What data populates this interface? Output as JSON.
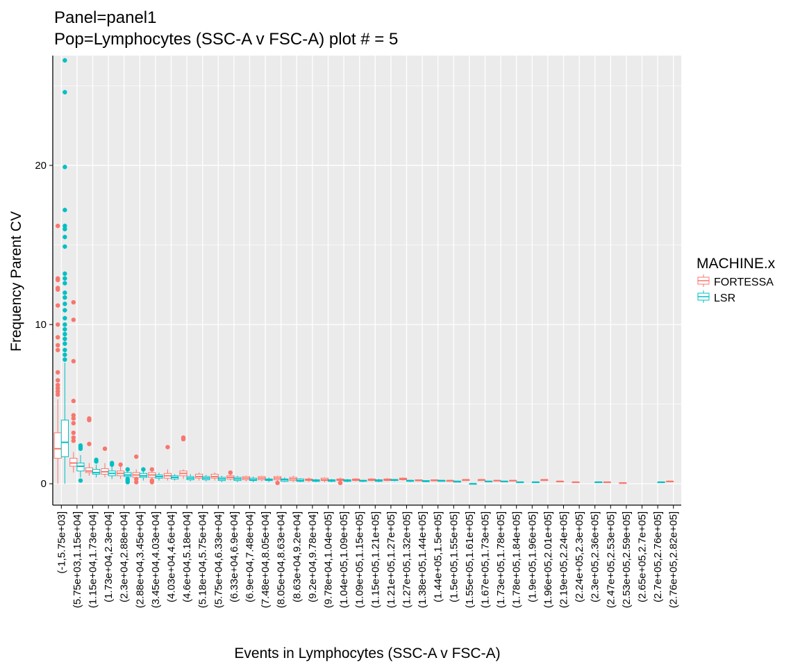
{
  "chart_data": {
    "type": "box",
    "title_lines": [
      "Panel=panel1",
      "Pop=Lymphocytes (SSC-A v FSC-A) plot # = 5"
    ],
    "xlabel": "Events in Lymphocytes (SSC-A v FSC-A)",
    "ylabel": "Frequency Parent CV",
    "ylim": [
      -1.3,
      26.9
    ],
    "yticks": [
      0,
      10,
      20
    ],
    "grid": true,
    "legend_position": "right",
    "legend": {
      "title": "MACHINE.x",
      "entries": [
        {
          "name": "FORTESSA",
          "color": "#f8766d"
        },
        {
          "name": "LSR",
          "color": "#00bfc4"
        }
      ]
    },
    "categories": [
      "(-1,5.75e+03]",
      "(5.75e+03,1.15e+04]",
      "(1.15e+04,1.73e+04]",
      "(1.73e+04,2.3e+04]",
      "(2.3e+04,2.88e+04]",
      "(2.88e+04,3.45e+04]",
      "(3.45e+04,4.03e+04]",
      "(4.03e+04,4.6e+04]",
      "(4.6e+04,5.18e+04]",
      "(5.18e+04,5.75e+04]",
      "(5.75e+04,6.33e+04]",
      "(6.33e+04,6.9e+04]",
      "(6.9e+04,7.48e+04]",
      "(7.48e+04,8.05e+04]",
      "(8.05e+04,8.63e+04]",
      "(8.63e+04,9.2e+04]",
      "(9.2e+04,9.78e+04]",
      "(9.78e+04,1.04e+05]",
      "(1.04e+05,1.09e+05]",
      "(1.09e+05,1.15e+05]",
      "(1.15e+05,1.21e+05]",
      "(1.21e+05,1.27e+05]",
      "(1.27e+05,1.32e+05]",
      "(1.38e+05,1.44e+05]",
      "(1.44e+05,1.5e+05]",
      "(1.5e+05,1.55e+05]",
      "(1.55e+05,1.61e+05]",
      "(1.67e+05,1.73e+05]",
      "(1.73e+05,1.78e+05]",
      "(1.78e+05,1.84e+05]",
      "(1.9e+05,1.96e+05]",
      "(1.96e+05,2.01e+05]",
      "(2.19e+05,2.24e+05]",
      "(2.24e+05,2.3e+05]",
      "(2.3e+05,2.36e+05]",
      "(2.47e+05,2.53e+05]",
      "(2.53e+05,2.59e+05]",
      "(2.65e+05,2.7e+05]",
      "(2.7e+05,2.76e+05]",
      "(2.76e+05,2.82e+05]"
    ],
    "series": [
      {
        "name": "FORTESSA",
        "color": "#f8766d",
        "boxes": [
          {
            "cat": 0,
            "q1": 1.6,
            "med": 2.2,
            "q3": 3.2,
            "lo": 0.0,
            "hi": 5.3,
            "outliers": [
              5.6,
              5.8,
              6.0,
              6.2,
              6.5,
              7.0,
              8.4,
              8.7,
              9.2,
              10.0,
              11.2,
              12.2,
              12.3,
              12.8,
              12.9,
              16.2
            ]
          },
          {
            "cat": 1,
            "q1": 1.1,
            "med": 1.3,
            "q3": 1.6,
            "lo": 0.7,
            "hi": 2.0,
            "outliers": [
              2.7,
              2.9,
              3.2,
              3.8,
              4.1,
              4.3,
              5.2,
              7.7,
              10.3,
              11.4
            ]
          },
          {
            "cat": 2,
            "q1": 0.7,
            "med": 0.8,
            "q3": 1.0,
            "lo": 0.5,
            "hi": 1.3,
            "outliers": [
              2.5,
              4.0,
              4.1
            ]
          },
          {
            "cat": 3,
            "q1": 0.6,
            "med": 0.75,
            "q3": 0.95,
            "lo": 0.4,
            "hi": 1.3,
            "outliers": [
              2.2
            ]
          },
          {
            "cat": 4,
            "q1": 0.5,
            "med": 0.65,
            "q3": 0.8,
            "lo": 0.3,
            "hi": 1.1,
            "outliers": [
              1.2
            ]
          },
          {
            "cat": 5,
            "q1": 0.4,
            "med": 0.55,
            "q3": 0.7,
            "lo": 0.2,
            "hi": 0.9,
            "outliers": [
              0.1,
              0.3,
              1.7
            ]
          },
          {
            "cat": 6,
            "q1": 0.4,
            "med": 0.55,
            "q3": 0.7,
            "lo": 0.2,
            "hi": 0.8,
            "outliers": [
              0.1,
              0.2,
              0.9
            ]
          },
          {
            "cat": 7,
            "q1": 0.35,
            "med": 0.5,
            "q3": 0.65,
            "lo": 0.2,
            "hi": 0.9,
            "outliers": [
              2.3
            ]
          },
          {
            "cat": 8,
            "q1": 0.5,
            "med": 0.65,
            "q3": 0.8,
            "lo": 0.3,
            "hi": 0.9,
            "outliers": [
              2.8,
              2.9
            ]
          },
          {
            "cat": 9,
            "q1": 0.35,
            "med": 0.45,
            "q3": 0.6,
            "lo": 0.2,
            "hi": 0.7,
            "outliers": []
          },
          {
            "cat": 10,
            "q1": 0.35,
            "med": 0.45,
            "q3": 0.6,
            "lo": 0.2,
            "hi": 0.7,
            "outliers": []
          },
          {
            "cat": 11,
            "q1": 0.3,
            "med": 0.4,
            "q3": 0.5,
            "lo": 0.2,
            "hi": 0.6,
            "outliers": [
              0.7
            ]
          },
          {
            "cat": 12,
            "q1": 0.25,
            "med": 0.35,
            "q3": 0.45,
            "lo": 0.15,
            "hi": 0.5,
            "outliers": []
          },
          {
            "cat": 13,
            "q1": 0.25,
            "med": 0.35,
            "q3": 0.45,
            "lo": 0.15,
            "hi": 0.5,
            "outliers": []
          },
          {
            "cat": 14,
            "q1": 0.25,
            "med": 0.35,
            "q3": 0.45,
            "lo": 0.15,
            "hi": 0.5,
            "outliers": [
              0.05
            ]
          },
          {
            "cat": 15,
            "q1": 0.2,
            "med": 0.3,
            "q3": 0.4,
            "lo": 0.1,
            "hi": 0.5,
            "outliers": []
          },
          {
            "cat": 16,
            "q1": 0.2,
            "med": 0.25,
            "q3": 0.3,
            "lo": 0.1,
            "hi": 0.4,
            "outliers": []
          },
          {
            "cat": 17,
            "q1": 0.2,
            "med": 0.25,
            "q3": 0.35,
            "lo": 0.1,
            "hi": 0.4,
            "outliers": []
          },
          {
            "cat": 18,
            "q1": 0.2,
            "med": 0.25,
            "q3": 0.3,
            "lo": 0.1,
            "hi": 0.4,
            "outliers": [
              0.05
            ]
          },
          {
            "cat": 19,
            "q1": 0.2,
            "med": 0.25,
            "q3": 0.3,
            "lo": 0.15,
            "hi": 0.35,
            "outliers": []
          },
          {
            "cat": 20,
            "q1": 0.2,
            "med": 0.25,
            "q3": 0.3,
            "lo": 0.15,
            "hi": 0.35,
            "outliers": []
          },
          {
            "cat": 21,
            "q1": 0.2,
            "med": 0.25,
            "q3": 0.3,
            "lo": 0.15,
            "hi": 0.35,
            "outliers": []
          },
          {
            "cat": 22,
            "q1": 0.25,
            "med": 0.3,
            "q3": 0.35,
            "lo": 0.2,
            "hi": 0.4,
            "outliers": []
          },
          {
            "cat": 23,
            "q1": 0.2,
            "med": 0.2,
            "q3": 0.25,
            "lo": 0.15,
            "hi": 0.25,
            "outliers": []
          },
          {
            "cat": 24,
            "q1": 0.2,
            "med": 0.2,
            "q3": 0.25,
            "lo": 0.15,
            "hi": 0.25,
            "outliers": []
          },
          {
            "cat": 25,
            "q1": 0.15,
            "med": 0.2,
            "q3": 0.2,
            "lo": 0.15,
            "hi": 0.25,
            "outliers": []
          },
          {
            "cat": 26,
            "q1": 0.2,
            "med": 0.25,
            "q3": 0.25,
            "lo": 0.2,
            "hi": 0.3,
            "outliers": []
          },
          {
            "cat": 27,
            "q1": 0.2,
            "med": 0.25,
            "q3": 0.25,
            "lo": 0.2,
            "hi": 0.3,
            "outliers": []
          },
          {
            "cat": 28,
            "q1": 0.2,
            "med": 0.2,
            "q3": 0.2,
            "lo": 0.2,
            "hi": 0.2,
            "outliers": []
          },
          {
            "cat": 29,
            "q1": 0.2,
            "med": 0.2,
            "q3": 0.2,
            "lo": 0.2,
            "hi": 0.2,
            "outliers": []
          },
          {
            "cat": 31,
            "q1": 0.2,
            "med": 0.25,
            "q3": 0.25,
            "lo": 0.2,
            "hi": 0.25,
            "outliers": []
          },
          {
            "cat": 32,
            "q1": 0.15,
            "med": 0.15,
            "q3": 0.15,
            "lo": 0.15,
            "hi": 0.15,
            "outliers": []
          },
          {
            "cat": 33,
            "q1": 0.1,
            "med": 0.1,
            "q3": 0.1,
            "lo": 0.1,
            "hi": 0.1,
            "outliers": []
          },
          {
            "cat": 35,
            "q1": 0.1,
            "med": 0.1,
            "q3": 0.1,
            "lo": 0.1,
            "hi": 0.1,
            "outliers": []
          },
          {
            "cat": 36,
            "q1": 0.05,
            "med": 0.05,
            "q3": 0.05,
            "lo": 0.05,
            "hi": 0.05,
            "outliers": []
          },
          {
            "cat": 39,
            "q1": 0.15,
            "med": 0.15,
            "q3": 0.15,
            "lo": 0.15,
            "hi": 0.15,
            "outliers": []
          }
        ]
      },
      {
        "name": "LSR",
        "color": "#00bfc4",
        "boxes": [
          {
            "cat": 0,
            "q1": 1.7,
            "med": 2.6,
            "q3": 4.0,
            "lo": 0.0,
            "hi": 7.6,
            "outliers": [
              7.8,
              8.1,
              8.4,
              8.8,
              9.1,
              9.4,
              9.7,
              10.0,
              10.4,
              10.9,
              11.3,
              11.7,
              12.0,
              12.6,
              12.9,
              13.2,
              14.9,
              15.5,
              16.0,
              16.2,
              17.2,
              19.9,
              24.6,
              26.6
            ]
          },
          {
            "cat": 1,
            "q1": 0.8,
            "med": 1.1,
            "q3": 1.3,
            "lo": 0.4,
            "hi": 1.8,
            "outliers": [
              0.2,
              2.2,
              2.3,
              2.4
            ]
          },
          {
            "cat": 2,
            "q1": 0.6,
            "med": 0.7,
            "q3": 0.9,
            "lo": 0.4,
            "hi": 1.2,
            "outliers": [
              1.4,
              1.5
            ]
          },
          {
            "cat": 3,
            "q1": 0.5,
            "med": 0.65,
            "q3": 0.8,
            "lo": 0.3,
            "hi": 1.1,
            "outliers": [
              1.2,
              1.3
            ]
          },
          {
            "cat": 4,
            "q1": 0.45,
            "med": 0.55,
            "q3": 0.7,
            "lo": 0.3,
            "hi": 0.8,
            "outliers": [
              0.1,
              0.2,
              0.3,
              0.9
            ]
          },
          {
            "cat": 5,
            "q1": 0.4,
            "med": 0.5,
            "q3": 0.65,
            "lo": 0.2,
            "hi": 0.8,
            "outliers": [
              0.9
            ]
          },
          {
            "cat": 6,
            "q1": 0.35,
            "med": 0.45,
            "q3": 0.55,
            "lo": 0.2,
            "hi": 0.7,
            "outliers": []
          },
          {
            "cat": 7,
            "q1": 0.3,
            "med": 0.4,
            "q3": 0.5,
            "lo": 0.2,
            "hi": 0.6,
            "outliers": []
          },
          {
            "cat": 8,
            "q1": 0.25,
            "med": 0.35,
            "q3": 0.45,
            "lo": 0.15,
            "hi": 0.6,
            "outliers": []
          },
          {
            "cat": 9,
            "q1": 0.25,
            "med": 0.35,
            "q3": 0.45,
            "lo": 0.15,
            "hi": 0.55,
            "outliers": []
          },
          {
            "cat": 10,
            "q1": 0.2,
            "med": 0.3,
            "q3": 0.4,
            "lo": 0.1,
            "hi": 0.5,
            "outliers": []
          },
          {
            "cat": 11,
            "q1": 0.2,
            "med": 0.3,
            "q3": 0.4,
            "lo": 0.1,
            "hi": 0.5,
            "outliers": []
          },
          {
            "cat": 12,
            "q1": 0.2,
            "med": 0.25,
            "q3": 0.35,
            "lo": 0.1,
            "hi": 0.45,
            "outliers": []
          },
          {
            "cat": 13,
            "q1": 0.2,
            "med": 0.25,
            "q3": 0.3,
            "lo": 0.1,
            "hi": 0.4,
            "outliers": []
          },
          {
            "cat": 14,
            "q1": 0.15,
            "med": 0.25,
            "q3": 0.3,
            "lo": 0.1,
            "hi": 0.4,
            "outliers": []
          },
          {
            "cat": 15,
            "q1": 0.15,
            "med": 0.2,
            "q3": 0.3,
            "lo": 0.1,
            "hi": 0.35,
            "outliers": []
          },
          {
            "cat": 16,
            "q1": 0.15,
            "med": 0.2,
            "q3": 0.25,
            "lo": 0.1,
            "hi": 0.3,
            "outliers": []
          },
          {
            "cat": 17,
            "q1": 0.15,
            "med": 0.2,
            "q3": 0.25,
            "lo": 0.1,
            "hi": 0.3,
            "outliers": []
          },
          {
            "cat": 18,
            "q1": 0.15,
            "med": 0.2,
            "q3": 0.25,
            "lo": 0.1,
            "hi": 0.3,
            "outliers": []
          },
          {
            "cat": 19,
            "q1": 0.15,
            "med": 0.2,
            "q3": 0.2,
            "lo": 0.1,
            "hi": 0.25,
            "outliers": []
          },
          {
            "cat": 20,
            "q1": 0.15,
            "med": 0.2,
            "q3": 0.25,
            "lo": 0.1,
            "hi": 0.3,
            "outliers": []
          },
          {
            "cat": 21,
            "q1": 0.2,
            "med": 0.25,
            "q3": 0.25,
            "lo": 0.15,
            "hi": 0.3,
            "outliers": []
          },
          {
            "cat": 22,
            "q1": 0.15,
            "med": 0.2,
            "q3": 0.2,
            "lo": 0.1,
            "hi": 0.25,
            "outliers": []
          },
          {
            "cat": 23,
            "q1": 0.15,
            "med": 0.15,
            "q3": 0.2,
            "lo": 0.1,
            "hi": 0.2,
            "outliers": []
          },
          {
            "cat": 24,
            "q1": 0.15,
            "med": 0.2,
            "q3": 0.2,
            "lo": 0.15,
            "hi": 0.2,
            "outliers": []
          },
          {
            "cat": 25,
            "q1": 0.1,
            "med": 0.15,
            "q3": 0.15,
            "lo": 0.1,
            "hi": 0.15,
            "outliers": []
          },
          {
            "cat": 26,
            "q1": 0.0,
            "med": 0.0,
            "q3": 0.0,
            "lo": 0.0,
            "hi": 0.0,
            "outliers": []
          },
          {
            "cat": 27,
            "q1": 0.15,
            "med": 0.15,
            "q3": 0.15,
            "lo": 0.15,
            "hi": 0.15,
            "outliers": []
          },
          {
            "cat": 28,
            "q1": 0.15,
            "med": 0.15,
            "q3": 0.15,
            "lo": 0.15,
            "hi": 0.15,
            "outliers": []
          },
          {
            "cat": 29,
            "q1": 0.1,
            "med": 0.1,
            "q3": 0.1,
            "lo": 0.1,
            "hi": 0.1,
            "outliers": []
          },
          {
            "cat": 30,
            "q1": 0.1,
            "med": 0.1,
            "q3": 0.1,
            "lo": 0.1,
            "hi": 0.1,
            "outliers": []
          },
          {
            "cat": 34,
            "q1": 0.1,
            "med": 0.1,
            "q3": 0.1,
            "lo": 0.1,
            "hi": 0.1,
            "outliers": []
          },
          {
            "cat": 38,
            "q1": 0.1,
            "med": 0.1,
            "q3": 0.1,
            "lo": 0.1,
            "hi": 0.1,
            "outliers": []
          }
        ]
      }
    ]
  }
}
